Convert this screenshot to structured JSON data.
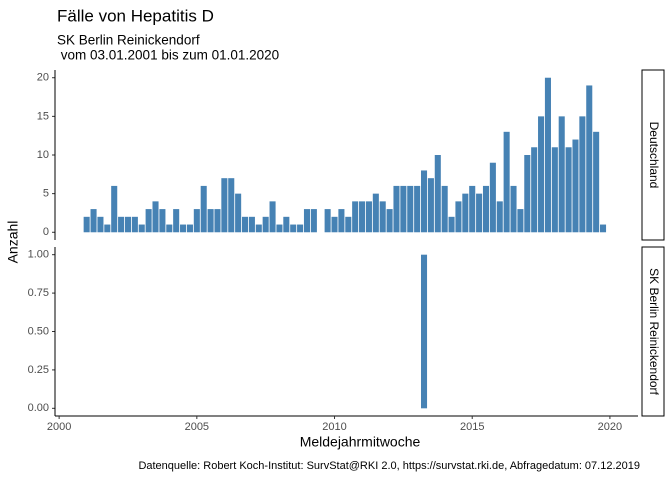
{
  "chart_data": {
    "type": "bar",
    "title": "Fälle von Hepatitis D",
    "subtitle": [
      "SK Berlin Reinickendorf",
      " vom 03.01.2001 bis zum 01.01.2020"
    ],
    "xlabel": "Meldejahrmitwoche",
    "ylabel": "Anzahl",
    "caption": "Datenquelle: Robert Koch-Institut: SurvStat@RKI 2.0, https://survstat.rki.de, Abfragedatum: 07.12.2019",
    "color": "#4682b4",
    "xlim": [
      1999.85,
      2021.02
    ],
    "xticks": [
      2000,
      2005,
      2010,
      2015,
      2020
    ],
    "panels": [
      {
        "strip": "Deutschland",
        "ylim": [
          -1,
          21
        ],
        "yticks": [
          0,
          5,
          10,
          15,
          20
        ],
        "x": [
          2001,
          2001.25,
          2001.5,
          2001.75,
          2002,
          2002.25,
          2002.5,
          2002.75,
          2003,
          2003.25,
          2003.5,
          2003.75,
          2004,
          2004.25,
          2004.5,
          2004.75,
          2005,
          2005.25,
          2005.5,
          2005.75,
          2006,
          2006.25,
          2006.5,
          2006.75,
          2007,
          2007.25,
          2007.5,
          2007.75,
          2008,
          2008.25,
          2008.5,
          2008.75,
          2009,
          2009.25,
          2009.5,
          2009.75,
          2010,
          2010.25,
          2010.5,
          2010.75,
          2011,
          2011.25,
          2011.5,
          2011.75,
          2012,
          2012.25,
          2012.5,
          2012.75,
          2013,
          2013.25,
          2013.5,
          2013.75,
          2014,
          2014.25,
          2014.5,
          2014.75,
          2015,
          2015.25,
          2015.5,
          2015.75,
          2016,
          2016.25,
          2016.5,
          2016.75,
          2017,
          2017.25,
          2017.5,
          2017.75,
          2018,
          2018.25,
          2018.5,
          2018.75,
          2019,
          2019.25,
          2019.5,
          2019.75
        ],
        "values": [
          2,
          3,
          2,
          1,
          6,
          2,
          2,
          2,
          1,
          3,
          4,
          3,
          1,
          3,
          1,
          1,
          3,
          6,
          3,
          3,
          7,
          7,
          5,
          2,
          2,
          1,
          2,
          4,
          1,
          2,
          1,
          1,
          3,
          3,
          null,
          3,
          2,
          3,
          2,
          4,
          4,
          4,
          5,
          4,
          3,
          6,
          6,
          6,
          6,
          8,
          7,
          10,
          6,
          2,
          4,
          5,
          6,
          5,
          6,
          9,
          4,
          13,
          6,
          3,
          10,
          11,
          15,
          20,
          11,
          15,
          11,
          12,
          15,
          19,
          13,
          1
        ]
      },
      {
        "strip": "SK Berlin Reinickendorf",
        "ylim": [
          -0.05,
          1.05
        ],
        "yticks": [
          {
            "value": 0,
            "label": "0.00"
          },
          {
            "value": 0.25,
            "label": "0.25"
          },
          {
            "value": 0.5,
            "label": "0.50"
          },
          {
            "value": 0.75,
            "label": "0.75"
          },
          {
            "value": 1,
            "label": "1.00"
          }
        ],
        "x": [
          2013.25
        ],
        "values": [
          1
        ]
      }
    ]
  }
}
